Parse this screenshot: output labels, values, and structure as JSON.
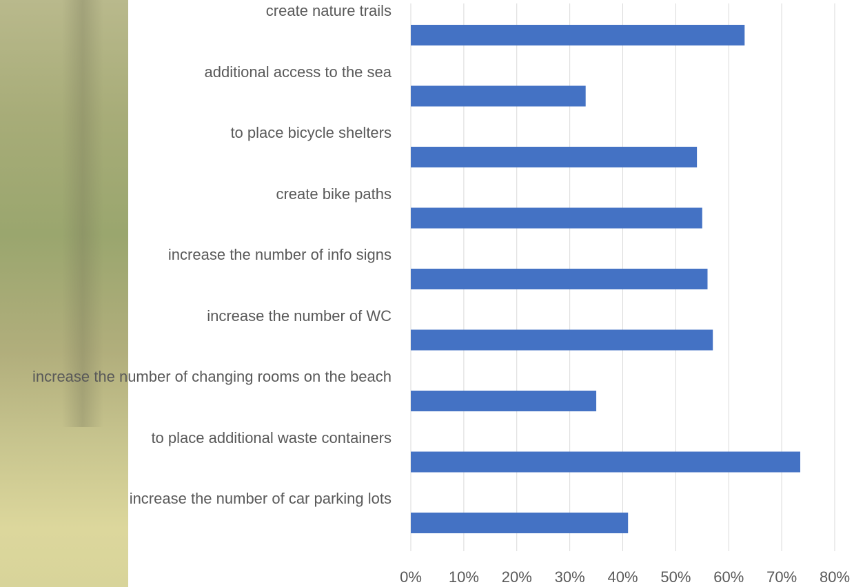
{
  "chart_data": {
    "type": "hbar",
    "categories": [
      "create nature trails",
      "additional access to the sea",
      "to place bicycle shelters",
      "create bike paths",
      "increase the number of info signs",
      "increase the number of WC",
      "increase the number of changing rooms on the beach",
      "to place additional waste containers",
      "increase the number of car parking lots"
    ],
    "values": [
      63,
      33,
      54,
      55,
      56,
      57,
      35,
      73.5,
      41
    ],
    "color": "#4472c4",
    "xlim": [
      0,
      80
    ],
    "xticks": [
      {
        "value": 0,
        "label": "0%"
      },
      {
        "value": 10,
        "label": "10%"
      },
      {
        "value": 20,
        "label": "20%"
      },
      {
        "value": 30,
        "label": "30%"
      },
      {
        "value": 40,
        "label": "40%"
      },
      {
        "value": 50,
        "label": "50%"
      },
      {
        "value": 60,
        "label": "60%"
      },
      {
        "value": 70,
        "label": "70%"
      },
      {
        "value": 80,
        "label": "80%"
      }
    ],
    "grid": true
  }
}
